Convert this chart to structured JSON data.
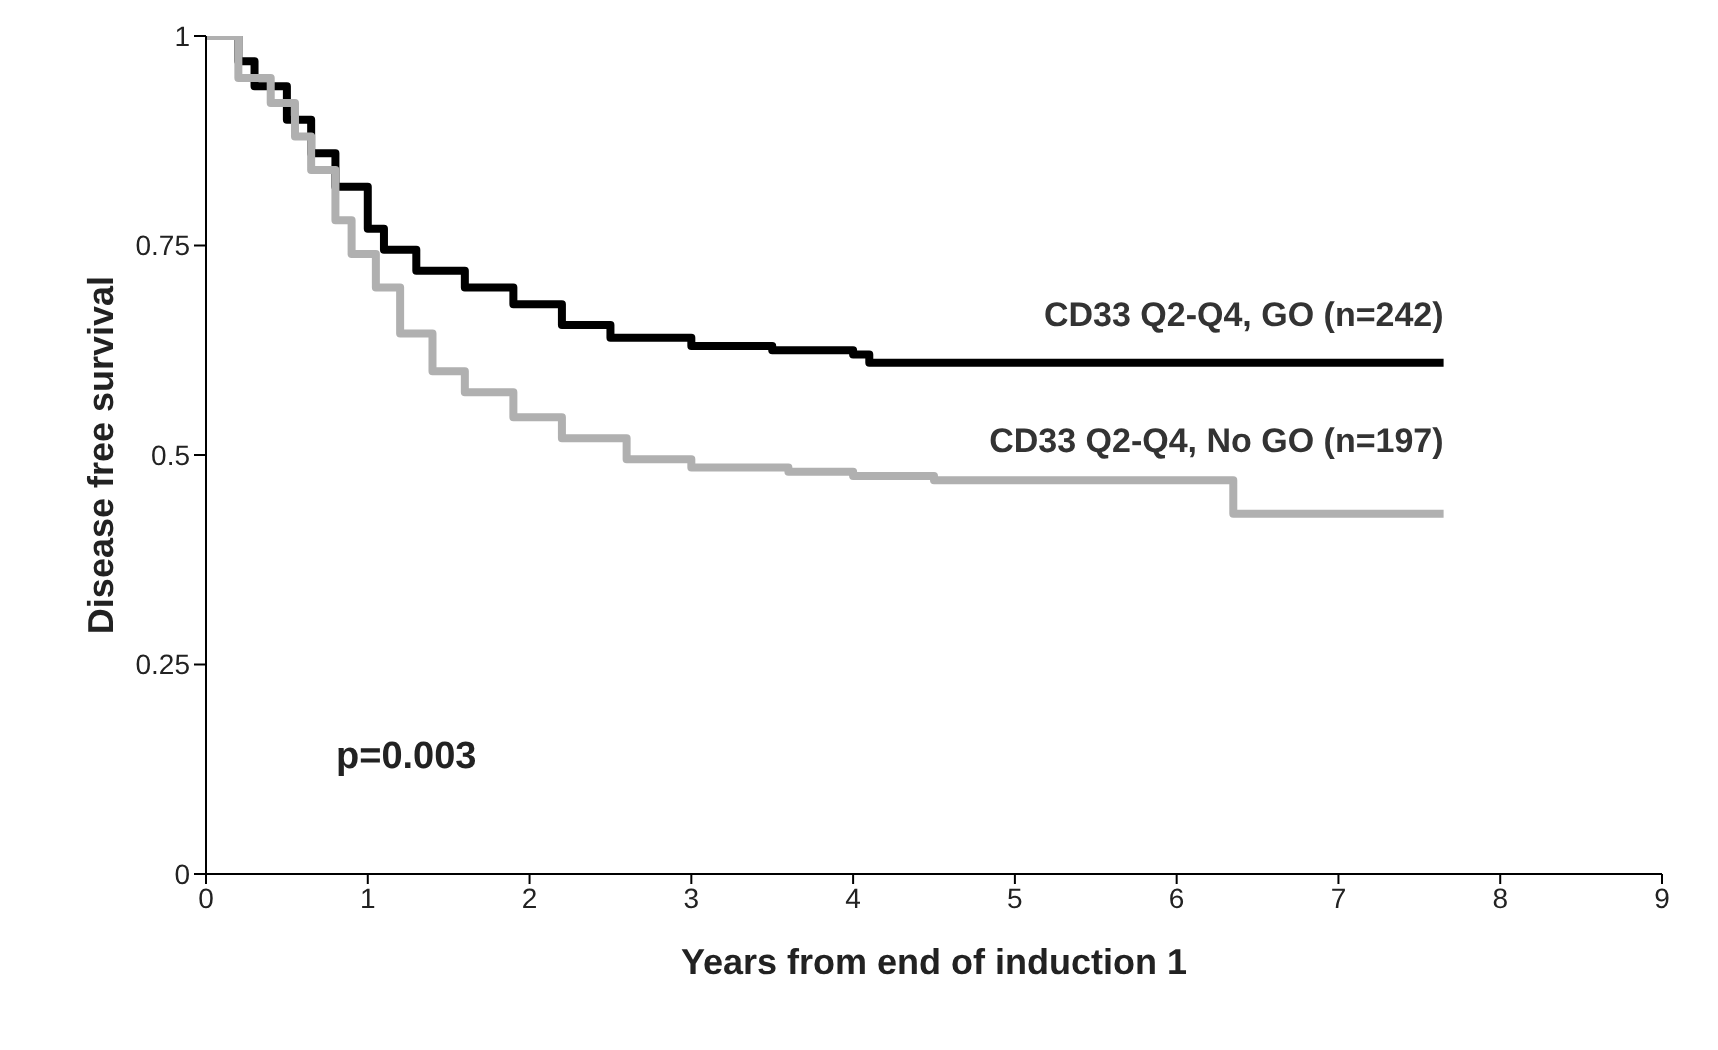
{
  "chart_data": {
    "type": "step",
    "xlabel": "Years from end of induction 1",
    "ylabel": "Disease free survival",
    "xlim": [
      0,
      9
    ],
    "xticks": [
      0,
      1,
      2,
      3,
      4,
      5,
      6,
      7,
      8,
      9
    ],
    "ylim": [
      0,
      1
    ],
    "yticks": [
      0,
      0.25,
      0.5,
      0.75,
      1
    ],
    "grid": false,
    "legend": false,
    "marker": "none",
    "line_style": "solid",
    "annotations": [
      "p=0.003"
    ],
    "series": [
      {
        "name": "CD33 Q2-Q4, GO (n=242)",
        "color": "#000000",
        "x": [
          0,
          0.2,
          0.3,
          0.5,
          0.65,
          0.8,
          1.0,
          1.1,
          1.3,
          1.6,
          1.9,
          2.2,
          2.5,
          3.0,
          3.5,
          4.0,
          4.1,
          7.65
        ],
        "values": [
          1,
          0.97,
          0.94,
          0.9,
          0.86,
          0.82,
          0.77,
          0.745,
          0.72,
          0.7,
          0.68,
          0.655,
          0.64,
          0.63,
          0.625,
          0.62,
          0.61,
          0.61
        ]
      },
      {
        "name": "CD33 Q2-Q4, No GO (n=197)",
        "color": "#b0b0b0",
        "x": [
          0,
          0.2,
          0.4,
          0.55,
          0.65,
          0.8,
          0.9,
          1.05,
          1.2,
          1.4,
          1.6,
          1.9,
          2.2,
          2.6,
          3.0,
          3.6,
          4.0,
          4.5,
          6.35,
          7.65
        ],
        "values": [
          1,
          0.95,
          0.92,
          0.88,
          0.84,
          0.78,
          0.74,
          0.7,
          0.645,
          0.6,
          0.575,
          0.545,
          0.52,
          0.495,
          0.485,
          0.48,
          0.475,
          0.47,
          0.43,
          0.43
        ]
      }
    ]
  }
}
